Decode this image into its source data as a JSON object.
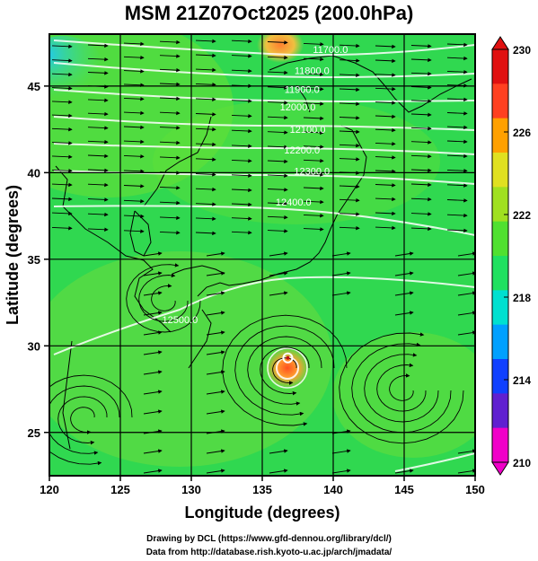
{
  "title": "MSM 21Z07Oct2025 (200.0hPa)",
  "axes": {
    "xlabel": "Longitude (degrees)",
    "ylabel": "Latitude  (degrees)",
    "xlim": [
      120,
      150
    ],
    "ylim": [
      22.5,
      48
    ],
    "xticks": [
      "120",
      "125",
      "130",
      "135",
      "140",
      "145",
      "150"
    ],
    "yticks": [
      "25",
      "30",
      "35",
      "40",
      "45"
    ]
  },
  "colorbar": {
    "min": 210,
    "max": 230,
    "ticks": [
      "230",
      "226",
      "222",
      "218",
      "214",
      "210"
    ],
    "colors": [
      "#f000c8",
      "#6020d0",
      "#1040ff",
      "#00a0ff",
      "#00e0d0",
      "#20e060",
      "#50e030",
      "#a0e020",
      "#e0e020",
      "#ffa000",
      "#ff4020",
      "#e01010"
    ]
  },
  "contour_labels": [
    {
      "text": "11700.0",
      "lon": 139.8,
      "lat": 46.9
    },
    {
      "text": "11800.0",
      "lon": 138.5,
      "lat": 45.7
    },
    {
      "text": "11900.0",
      "lon": 137.8,
      "lat": 44.6
    },
    {
      "text": "12000.0",
      "lon": 137.5,
      "lat": 43.6
    },
    {
      "text": "12100.0",
      "lon": 138.2,
      "lat": 42.3
    },
    {
      "text": "12200.0",
      "lon": 137.8,
      "lat": 41.1
    },
    {
      "text": "12300.0",
      "lon": 138.5,
      "lat": 39.9
    },
    {
      "text": "12400.0",
      "lon": 137.2,
      "lat": 38.1
    },
    {
      "text": "12500.0",
      "lon": 129.2,
      "lat": 31.3
    }
  ],
  "typhoon_center": {
    "lon": 136.8,
    "lat": 29.3
  },
  "credits": {
    "line1": "Drawing by DCL (https://www.gfd-dennou.org/library/dcl/)",
    "line2": "Data from http://database.rish.kyoto-u.ac.jp/arch/jmadata/"
  }
}
